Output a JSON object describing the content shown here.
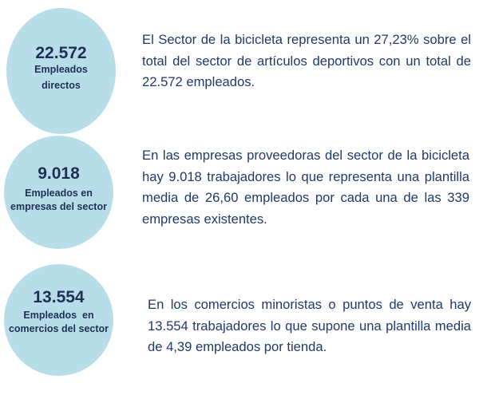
{
  "items": [
    {
      "number": "22.572",
      "label_lines": [
        "Empleados",
        "directos"
      ],
      "text": "El Sector de la bicicleta representa un 27,23% sobre el total del sector de artículos deportivos con un total de 22.572 empleados."
    },
    {
      "number": "9.018",
      "label_lines": [
        "Empleados en",
        "empresas del sector"
      ],
      "text": "En las empresas proveedoras del sector de la bicicleta hay 9.018 trabajadores lo que representa una plantilla media de 26,60 empleados por cada una de las 339 empresas existentes."
    },
    {
      "number": "13.554",
      "label_lines": [
        "Empleados  en",
        "comercios del sector"
      ],
      "text": "En los comercios minoristas o puntos de venta hay 13.554 trabajadores lo que supone una plantilla media de 4,39 empleados por tienda."
    }
  ],
  "colors": {
    "circle": "#b7dee8",
    "text": "#1f3a6b"
  }
}
